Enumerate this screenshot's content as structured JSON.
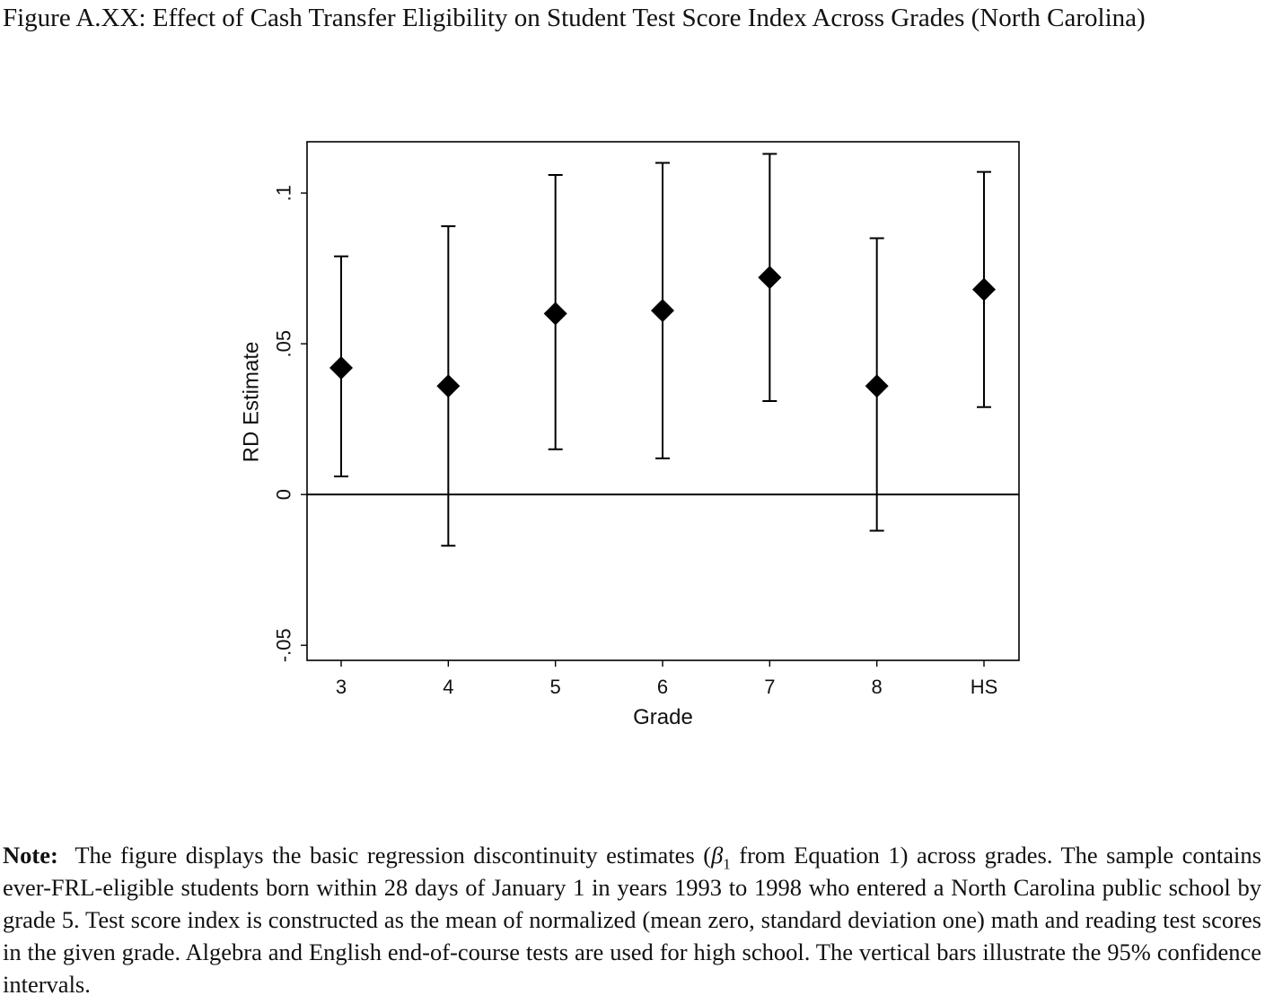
{
  "figure": {
    "caption": "Figure A.XX: Effect of Cash Transfer Eligibility on Student Test Score Index Across Grades (North Carolina)"
  },
  "note": {
    "label": "Note:",
    "before_beta": "The figure displays the basic regression discontinuity estimates (",
    "beta": "β",
    "beta_sub": "1",
    "after_beta": " from Equation 1) across grades. The sample contains ever-FRL-eligible students born within 28 days of January 1 in years 1993 to 1998 who entered a North Carolina public school by grade 5. Test score index is constructed as the mean of normalized (mean zero, standard deviation one) math and reading test scores in the given grade. Algebra and English end-of-course tests are used for high school. The vertical bars illustrate the 95% confidence intervals."
  },
  "chart_data": {
    "type": "scatter",
    "categories": [
      "3",
      "4",
      "5",
      "6",
      "7",
      "8",
      "HS"
    ],
    "values": [
      0.042,
      0.036,
      0.06,
      0.061,
      0.072,
      0.036,
      0.068
    ],
    "ci_lower": [
      0.006,
      -0.017,
      0.015,
      0.012,
      0.031,
      -0.012,
      0.029
    ],
    "ci_upper": [
      0.079,
      0.089,
      0.106,
      0.11,
      0.113,
      0.085,
      0.107
    ],
    "xlabel": "Grade",
    "ylabel": "RD Estimate",
    "ylim": [
      -0.055,
      0.117
    ],
    "yticks": [
      -0.05,
      0,
      0.05,
      0.1
    ],
    "ytick_labels": [
      "-.05",
      "0",
      ".05",
      ".1"
    ],
    "reference_line": 0,
    "marker": "diamond",
    "colors": {
      "marker": "#000000",
      "axis": "#000000"
    },
    "grid": false
  }
}
